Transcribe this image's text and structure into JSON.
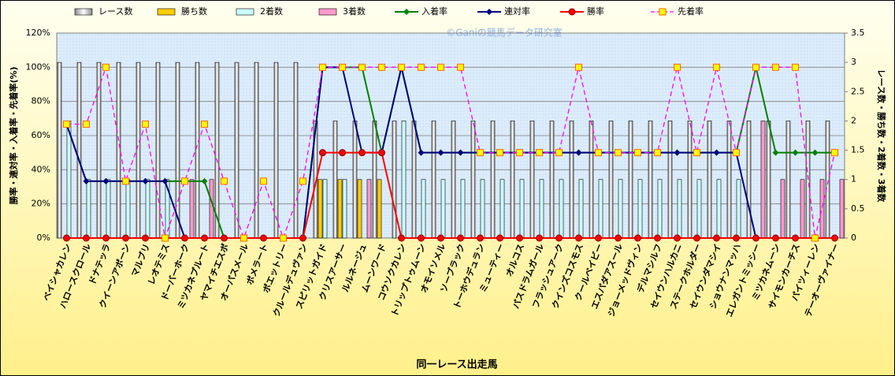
{
  "chart_data": {
    "type": "bar-line",
    "watermark": "©Ganiの競馬データ研究室",
    "xlabel": "同一レース出走馬",
    "ylabel": "勝率・連対率・入着率・先着率(%)",
    "y2label": "レース数・勝ち数・2着数・3着数",
    "categories": [
      "ベイシャカレン",
      "ハロースクロール",
      "ドナテッラ",
      "クイーンアポーン",
      "マルブリ",
      "レオテミス",
      "ドーバーホーク",
      "ミツカネプルート",
      "ヤマイチエスポ",
      "オーパスメール",
      "ポメラート",
      "ポエットリー",
      "クルールデュヴァン",
      "スピリットガイド",
      "クリスアーサー",
      "ルルネージュ",
      "ムーンワード",
      "コウソクカレン",
      "トリップトゥムーン",
      "オモイソメル",
      "ソーブラック",
      "トーホウデュラン",
      "ミューティー",
      "オルコス",
      "パスドラムガール",
      "フラッシュアーク",
      "クインズコスモス",
      "クールベイビー",
      "エスパダアスール",
      "ジョーメッドヴィン",
      "デルマシルフ",
      "セイウンハルカニ",
      "ステークホルダー",
      "セイウンダマシイ",
      "ショウナンマッハ",
      "エレガントミッシー",
      "ミツカネムーン",
      "サイモンカーチス",
      "パイツィーレン",
      "テーオーヴァイナー"
    ],
    "ylim": [
      0,
      120
    ],
    "yticks": [
      {
        "value": 0,
        "label": "0%"
      },
      {
        "value": 20,
        "label": "20%"
      },
      {
        "value": 40,
        "label": "40%"
      },
      {
        "value": 60,
        "label": "60%"
      },
      {
        "value": 80,
        "label": "80%"
      },
      {
        "value": 100,
        "label": "100%"
      },
      {
        "value": 120,
        "label": "120%"
      }
    ],
    "y2lim": [
      0,
      3.5
    ],
    "y2ticks": [
      0,
      0.5,
      1,
      1.5,
      2,
      2.5,
      3,
      3.5
    ],
    "grid": true,
    "series": [
      {
        "name": "レース数",
        "kind": "bar",
        "axis": "y2",
        "color": "#e8e8e8",
        "values": [
          3,
          3,
          3,
          3,
          3,
          3,
          3,
          3,
          3,
          3,
          3,
          3,
          3,
          2,
          2,
          2,
          2,
          2,
          2,
          2,
          2,
          2,
          2,
          2,
          2,
          2,
          2,
          2,
          2,
          2,
          2,
          2,
          2,
          2,
          2,
          2,
          2,
          2,
          2,
          2
        ]
      },
      {
        "name": "勝ち数",
        "kind": "bar",
        "axis": "y2",
        "color": "#ffcc00",
        "values": [
          0,
          0,
          0,
          0,
          0,
          0,
          0,
          0,
          0,
          0,
          0,
          0,
          0,
          1,
          1,
          1,
          1,
          0,
          0,
          0,
          0,
          0,
          0,
          0,
          0,
          0,
          0,
          0,
          0,
          0,
          0,
          0,
          0,
          0,
          0,
          0,
          0,
          0,
          0,
          0
        ]
      },
      {
        "name": "2着数",
        "kind": "bar",
        "axis": "y2",
        "color": "#ccffff",
        "values": [
          2,
          1,
          1,
          1,
          1,
          1,
          0,
          0,
          0,
          0,
          0,
          0,
          0,
          1,
          1,
          0,
          0,
          2,
          1,
          1,
          1,
          1,
          1,
          1,
          1,
          1,
          1,
          1,
          1,
          1,
          1,
          1,
          1,
          1,
          1,
          0,
          0,
          0,
          0,
          0
        ]
      },
      {
        "name": "3着数",
        "kind": "bar",
        "axis": "y2",
        "color": "#ff99cc",
        "values": [
          0,
          0,
          0,
          0,
          0,
          0,
          1,
          1,
          0,
          0,
          0,
          0,
          0,
          0,
          0,
          1,
          0,
          0,
          0,
          0,
          0,
          0,
          0,
          0,
          0,
          0,
          0,
          0,
          0,
          0,
          0,
          0,
          0,
          0,
          0,
          2,
          1,
          1,
          1,
          1
        ]
      },
      {
        "name": "入着率",
        "kind": "line",
        "marker": "diamond",
        "color": "#008000",
        "values": [
          66.7,
          33.3,
          33.3,
          33.3,
          33.3,
          33.3,
          33.3,
          33.3,
          0,
          0,
          0,
          0,
          0,
          100,
          100,
          100,
          50,
          100,
          50,
          50,
          50,
          50,
          50,
          50,
          50,
          50,
          50,
          50,
          50,
          50,
          50,
          50,
          50,
          50,
          50,
          100,
          50,
          50,
          50,
          50
        ]
      },
      {
        "name": "連対率",
        "kind": "line",
        "marker": "diamond",
        "color": "#000080",
        "values": [
          66.7,
          33.3,
          33.3,
          33.3,
          33.3,
          33.3,
          0,
          0,
          0,
          0,
          0,
          0,
          0,
          100,
          100,
          50,
          50,
          100,
          50,
          50,
          50,
          50,
          50,
          50,
          50,
          50,
          50,
          50,
          50,
          50,
          50,
          50,
          50,
          50,
          50,
          0,
          0,
          0,
          0,
          0
        ]
      },
      {
        "name": "勝率",
        "kind": "line",
        "marker": "circle",
        "color": "#ff0000",
        "values": [
          0,
          0,
          0,
          0,
          0,
          0,
          0,
          0,
          0,
          0,
          0,
          0,
          0,
          50,
          50,
          50,
          50,
          0,
          0,
          0,
          0,
          0,
          0,
          0,
          0,
          0,
          0,
          0,
          0,
          0,
          0,
          0,
          0,
          0,
          0,
          0,
          0,
          0,
          0,
          0
        ]
      },
      {
        "name": "先着率",
        "kind": "line",
        "marker": "square",
        "dashed": true,
        "color": "#ff00ff",
        "marker_color": "#ffff00",
        "values": [
          66.7,
          66.7,
          100,
          33.3,
          66.7,
          0,
          33.3,
          66.7,
          33.3,
          0,
          33.3,
          0,
          33.3,
          100,
          100,
          100,
          100,
          100,
          100,
          100,
          100,
          50,
          50,
          50,
          50,
          50,
          100,
          50,
          50,
          50,
          50,
          100,
          50,
          100,
          50,
          100,
          100,
          100,
          0,
          50
        ]
      }
    ]
  }
}
